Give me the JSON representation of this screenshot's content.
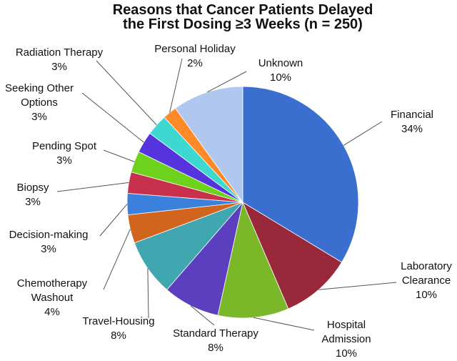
{
  "chart_data": {
    "type": "pie",
    "title": "Reasons that Cancer Patients Delayed\nthe First Dosing ≥3 Weeks (n = 250)",
    "categories": [
      "Financial",
      "Laboratory\nClearance",
      "Hospital\nAdmission",
      "Standard Therapy",
      "Travel-Housing",
      "Chemotherapy\nWashout",
      "Decision-making",
      "Biopsy",
      "Pending Spot",
      "Seeking Other\nOptions",
      "Radiation Therapy",
      "Personal Holiday",
      "Unknown"
    ],
    "values": [
      34,
      10,
      10,
      8,
      8,
      4,
      3,
      3,
      3,
      3,
      3,
      2,
      10
    ],
    "value_labels": [
      "34%",
      "10%",
      "10%",
      "8%",
      "8%",
      "4%",
      "3%",
      "3%",
      "3%",
      "3%",
      "3%",
      "2%",
      "10%"
    ],
    "colors": [
      "#3a6fcf",
      "#99283a",
      "#7ab82a",
      "#5b3fbf",
      "#40a6b0",
      "#d2651d",
      "#3a80dc",
      "#c8304b",
      "#6dd21b",
      "#5533dd",
      "#3fd8d0",
      "#ff8a2a",
      "#b0c8f0"
    ]
  }
}
